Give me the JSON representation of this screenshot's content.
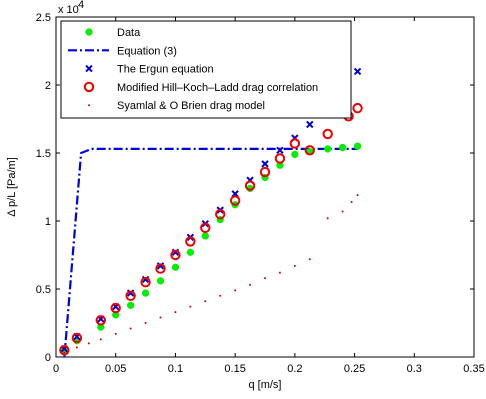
{
  "chart_data": {
    "type": "scatter",
    "xlabel": "q [m/s]",
    "ylabel": "Δ p/L  [Pa/m]",
    "y_exponent_label": "x 10",
    "y_exponent_power": "4",
    "y_multiplier": 10000,
    "xlim": [
      0,
      0.35
    ],
    "ylim": [
      0,
      25000
    ],
    "x_ticks": [
      0,
      0.05,
      0.1,
      0.15,
      0.2,
      0.25,
      0.3,
      0.35
    ],
    "x_tick_labels": [
      "0",
      "0.05",
      "0.1",
      "0.15",
      "0.2",
      "0.25",
      "0.3",
      "0.35"
    ],
    "y_ticks": [
      0,
      5000,
      10000,
      15000,
      20000,
      25000
    ],
    "y_tick_labels": [
      "0",
      "0.5",
      "1",
      "1.5",
      "2",
      "2.5"
    ],
    "grid": false,
    "legend_position": "top-left",
    "series": [
      {
        "name": "Data",
        "marker": "filled-circle",
        "color": "#00ee00",
        "points": [
          [
            0.007,
            500
          ],
          [
            0.0175,
            1200
          ],
          [
            0.0375,
            2200
          ],
          [
            0.05,
            3100
          ],
          [
            0.0625,
            3800
          ],
          [
            0.075,
            4700
          ],
          [
            0.0875,
            5600
          ],
          [
            0.1,
            6600
          ],
          [
            0.1125,
            7700
          ],
          [
            0.125,
            8900
          ],
          [
            0.1375,
            10100
          ],
          [
            0.15,
            11200
          ],
          [
            0.1625,
            12400
          ],
          [
            0.175,
            13200
          ],
          [
            0.1875,
            14100
          ],
          [
            0.2,
            14900
          ],
          [
            0.2125,
            15100
          ],
          [
            0.2275,
            15300
          ],
          [
            0.24,
            15400
          ],
          [
            0.2525,
            15500
          ]
        ]
      },
      {
        "name": "Equation (3)",
        "marker": "dash-dot-line",
        "color": "#0000dd",
        "points": [
          [
            0.007,
            0
          ],
          [
            0.021,
            15000
          ],
          [
            0.03,
            15300
          ],
          [
            0.2525,
            15300
          ]
        ]
      },
      {
        "name": "The Ergun equation",
        "marker": "x",
        "color": "#0000cc",
        "points": [
          [
            0.007,
            600
          ],
          [
            0.0175,
            1500
          ],
          [
            0.0375,
            2800
          ],
          [
            0.05,
            3700
          ],
          [
            0.0625,
            4700
          ],
          [
            0.075,
            5700
          ],
          [
            0.0875,
            6700
          ],
          [
            0.1,
            7700
          ],
          [
            0.1125,
            8800
          ],
          [
            0.125,
            9800
          ],
          [
            0.1375,
            10800
          ],
          [
            0.15,
            12000
          ],
          [
            0.1625,
            13000
          ],
          [
            0.175,
            14200
          ],
          [
            0.1875,
            15200
          ],
          [
            0.2,
            16100
          ],
          [
            0.2125,
            17100
          ],
          [
            0.2525,
            21000
          ]
        ]
      },
      {
        "name": "Modified Hill–Koch–Ladd drag correlation",
        "marker": "open-circle",
        "color": "#ee0000",
        "points": [
          [
            0.007,
            500
          ],
          [
            0.0175,
            1400
          ],
          [
            0.0375,
            2700
          ],
          [
            0.05,
            3600
          ],
          [
            0.0625,
            4500
          ],
          [
            0.075,
            5500
          ],
          [
            0.0875,
            6500
          ],
          [
            0.1,
            7500
          ],
          [
            0.1125,
            8500
          ],
          [
            0.125,
            9500
          ],
          [
            0.1375,
            10500
          ],
          [
            0.15,
            11500
          ],
          [
            0.1625,
            12600
          ],
          [
            0.175,
            13600
          ],
          [
            0.1875,
            14600
          ],
          [
            0.2,
            15700
          ],
          [
            0.2125,
            15200
          ],
          [
            0.2275,
            16400
          ],
          [
            0.245,
            17700
          ],
          [
            0.2525,
            18300
          ]
        ]
      },
      {
        "name": "Syamlal & O Brien drag model",
        "marker": "dot",
        "color": "#cc0000",
        "points": [
          [
            0.007,
            300
          ],
          [
            0.0175,
            700
          ],
          [
            0.0275,
            1000
          ],
          [
            0.0375,
            1300
          ],
          [
            0.05,
            1700
          ],
          [
            0.0625,
            2100
          ],
          [
            0.075,
            2500
          ],
          [
            0.0875,
            2900
          ],
          [
            0.1,
            3300
          ],
          [
            0.1125,
            3700
          ],
          [
            0.125,
            4100
          ],
          [
            0.1375,
            4500
          ],
          [
            0.15,
            4900
          ],
          [
            0.1625,
            5300
          ],
          [
            0.175,
            5800
          ],
          [
            0.1875,
            6200
          ],
          [
            0.2,
            6700
          ],
          [
            0.2125,
            7200
          ],
          [
            0.2275,
            10200
          ],
          [
            0.24,
            10700
          ],
          [
            0.2475,
            11400
          ],
          [
            0.2525,
            11900
          ]
        ]
      }
    ]
  }
}
